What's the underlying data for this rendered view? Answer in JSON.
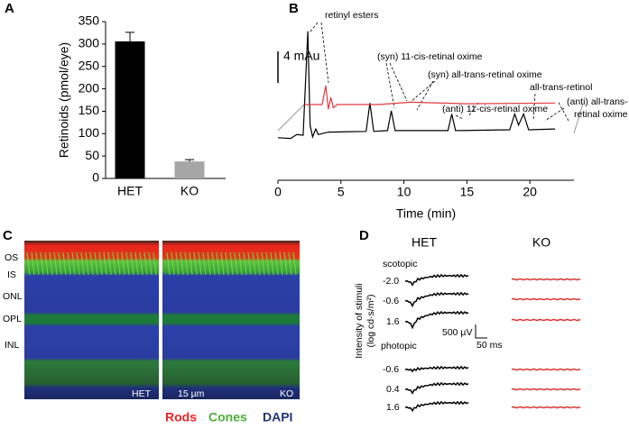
{
  "panel_labels": [
    "A",
    "B",
    "C",
    "D"
  ],
  "chart_data": [
    {
      "type": "bar",
      "ylabel": "Retinoids (pmol/eye)",
      "categories": [
        "HET",
        "KO"
      ],
      "values": [
        306,
        38
      ],
      "errors": [
        20,
        4
      ],
      "colors": [
        "#000000",
        "#a6a6a6"
      ],
      "ylim": [
        0,
        350
      ],
      "yticks": [
        0,
        50,
        100,
        150,
        200,
        250,
        300,
        350
      ]
    },
    {
      "type": "line",
      "xlabel": "Time (min)",
      "xlim": [
        0,
        23.5
      ],
      "xticks": [
        0,
        5,
        10,
        15,
        20
      ],
      "ylim": [
        0,
        19.5
      ],
      "scale_bar": {
        "value": 4,
        "label": "4 mAu"
      },
      "series": [
        {
          "color": "#000000",
          "x": [
            0,
            1,
            1.5,
            2.0,
            2.37,
            2.55,
            2.75,
            3.0,
            3.2,
            4,
            7.0,
            7.3,
            7.6,
            8.7,
            9.0,
            9.3,
            13.5,
            13.8,
            14.1,
            18.4,
            18.8,
            19.1,
            19.5,
            19.9,
            22
          ],
          "values": [
            5.4,
            5.3,
            5.8,
            5.7,
            18.9,
            7,
            5.5,
            6.5,
            5.8,
            6.1,
            6.2,
            9.8,
            6.2,
            6.3,
            8.8,
            6.3,
            6.3,
            8.4,
            6.3,
            6.4,
            8.4,
            7.0,
            8.4,
            6.4,
            6.5
          ]
        },
        {
          "color": "#e0393e",
          "x": [
            2.1,
            3.5,
            3.8,
            4.0,
            4.2,
            4.4,
            4.7,
            8.0,
            10.5,
            15,
            22
          ],
          "values": [
            9.6,
            9.6,
            12.0,
            9.0,
            10.5,
            9.2,
            9.6,
            9.6,
            9.9,
            9.7,
            9.8
          ]
        }
      ],
      "annotations": [
        "retinyl esters",
        "(syn) 11-cis-retinal oxime",
        "(syn) all-trans-retinal oxime",
        "all-trans-retinol",
        "(anti) 11-cis-retinal oxime",
        "(anti) all-trans-",
        "retinal oxime"
      ]
    }
  ],
  "panel_c": {
    "layers": [
      "OS",
      "IS",
      "ONL",
      "OPL",
      "INL"
    ],
    "genotypes": [
      "HET",
      "KO"
    ],
    "scale": "15 µm",
    "legend": [
      "Rods",
      "Cones",
      "DAPI"
    ]
  },
  "panel_d": {
    "genotypes": [
      "HET",
      "KO"
    ],
    "conditions": [
      "scotopic",
      "photopic"
    ],
    "ylabel": [
      "Intensity of stimuli",
      "(log cd·s/m²)"
    ],
    "scotopic_intensities": [
      "-2.0",
      "-0.6",
      "1.6"
    ],
    "photopic_intensities": [
      "-0.6",
      "0.4",
      "1.6"
    ],
    "scale_v": "500 µV",
    "scale_t": "50 ms"
  }
}
